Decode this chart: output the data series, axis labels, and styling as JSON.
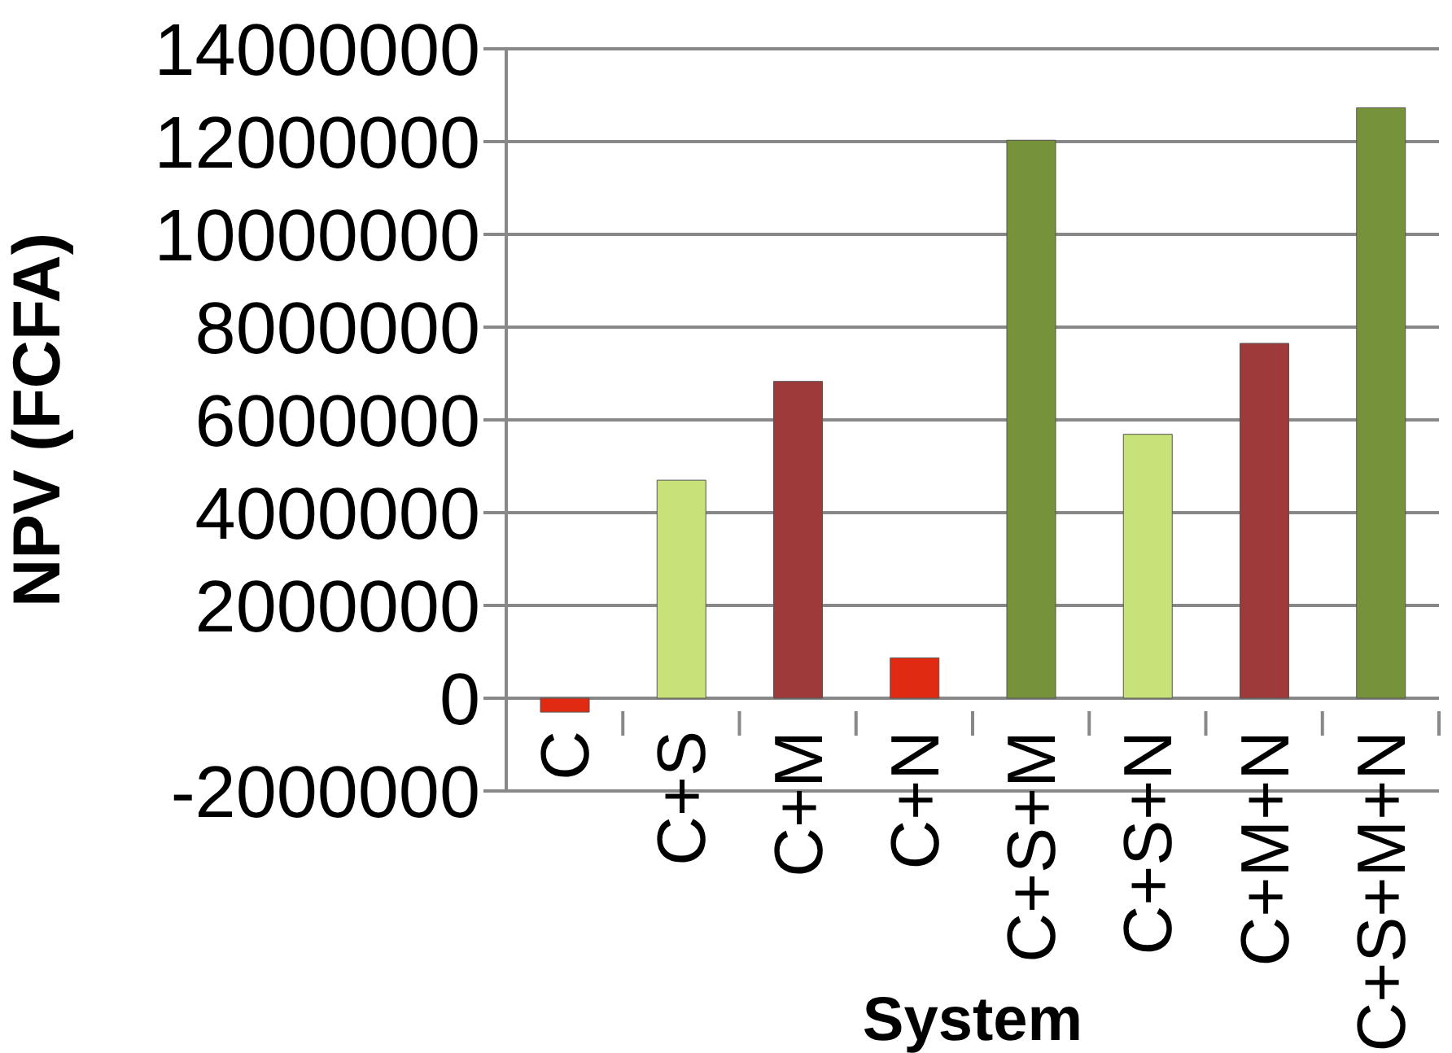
{
  "chart_data": {
    "type": "bar",
    "xlabel": "System",
    "ylabel": "NPV (FCFA)",
    "categories": [
      "C",
      "C+S",
      "C+M",
      "C+N",
      "C+S+M",
      "C+S+N",
      "C+M+N",
      "C+S+M+N"
    ],
    "values": [
      -300000,
      4700000,
      6830000,
      870000,
      12030000,
      5690000,
      7650000,
      12730000
    ],
    "colors": [
      "#e02a12",
      "#c8e27a",
      "#9e3a3a",
      "#e02a12",
      "#76933c",
      "#c8e27a",
      "#9e3a3a",
      "#76933c"
    ],
    "ylim": [
      -2000000,
      14000000
    ],
    "yticks": [
      -2000000,
      0,
      2000000,
      4000000,
      6000000,
      8000000,
      10000000,
      12000000,
      14000000
    ],
    "grid": "y",
    "legend": false
  }
}
